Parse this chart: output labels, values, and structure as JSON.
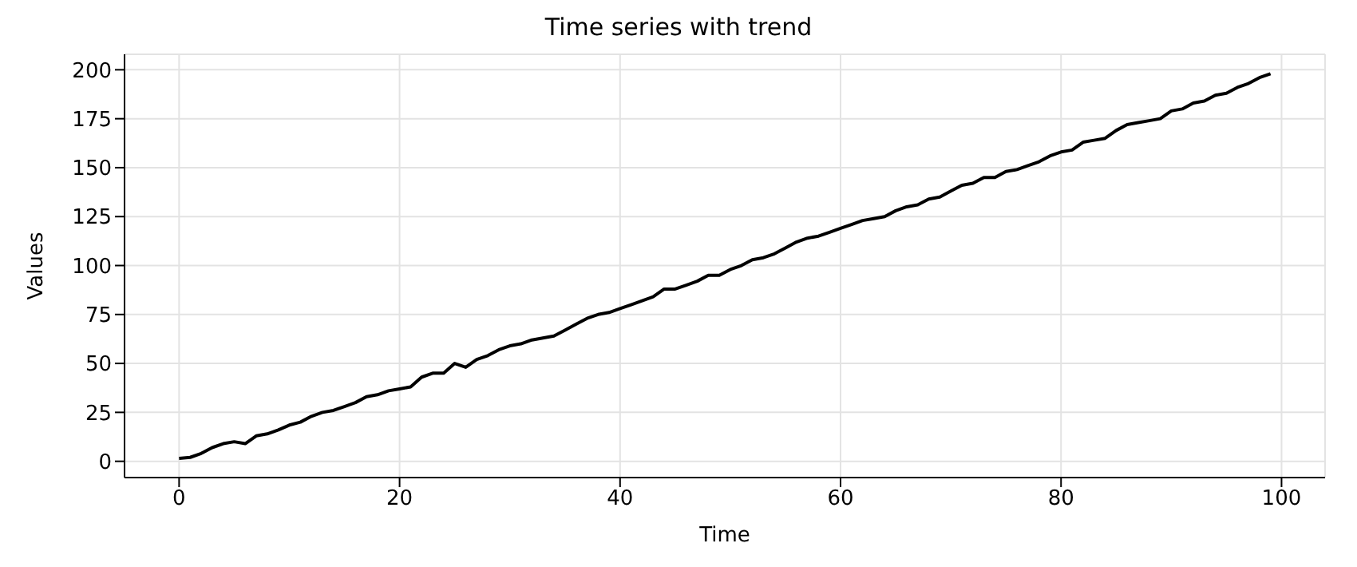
{
  "chart_data": {
    "type": "line",
    "title": "Time series with trend",
    "xlabel": "Time",
    "ylabel": "Values",
    "x": [
      0,
      1,
      2,
      3,
      4,
      5,
      6,
      7,
      8,
      9,
      10,
      11,
      12,
      13,
      14,
      15,
      16,
      17,
      18,
      19,
      20,
      21,
      22,
      23,
      24,
      25,
      26,
      27,
      28,
      29,
      30,
      31,
      32,
      33,
      34,
      35,
      36,
      37,
      38,
      39,
      40,
      41,
      42,
      43,
      44,
      45,
      46,
      47,
      48,
      49,
      50,
      51,
      52,
      53,
      54,
      55,
      56,
      57,
      58,
      59,
      60,
      61,
      62,
      63,
      64,
      65,
      66,
      67,
      68,
      69,
      70,
      71,
      72,
      73,
      74,
      75,
      76,
      77,
      78,
      79,
      80,
      81,
      82,
      83,
      84,
      85,
      86,
      87,
      88,
      89,
      90,
      91,
      92,
      93,
      94,
      95,
      96,
      97,
      98,
      99
    ],
    "series": [
      {
        "color": "#000000",
        "values": [
          1.5,
          2,
          4,
          7,
          9,
          10,
          9,
          13,
          14,
          16,
          18.5,
          20,
          23,
          25,
          26,
          28,
          30,
          33,
          34,
          36,
          37,
          38,
          43,
          45,
          45,
          50,
          48,
          52,
          54,
          57,
          59,
          60,
          62,
          63,
          64,
          67,
          70,
          73,
          75,
          76,
          78,
          80,
          82,
          84,
          88,
          88,
          90,
          92,
          95,
          95,
          98,
          100,
          103,
          104,
          106,
          109,
          112,
          114,
          115,
          117,
          119,
          121,
          123,
          124,
          125,
          128,
          130,
          131,
          134,
          135,
          138,
          141,
          142,
          145,
          145,
          148,
          149,
          151,
          153,
          156,
          158,
          159,
          163,
          164,
          165,
          169,
          172,
          173,
          174,
          175,
          179,
          180,
          183,
          184,
          187,
          188,
          191,
          193,
          196,
          198
        ]
      }
    ],
    "xlim": [
      -4.95,
      103.95
    ],
    "xticks": [
      0,
      20,
      40,
      60,
      80,
      100
    ],
    "ylim": [
      -8.3,
      207.9
    ],
    "yticks": [
      0,
      25,
      50,
      75,
      100,
      125,
      150,
      175,
      200
    ],
    "grid": true,
    "legend": false,
    "line_style": "solid",
    "marker": "none"
  }
}
